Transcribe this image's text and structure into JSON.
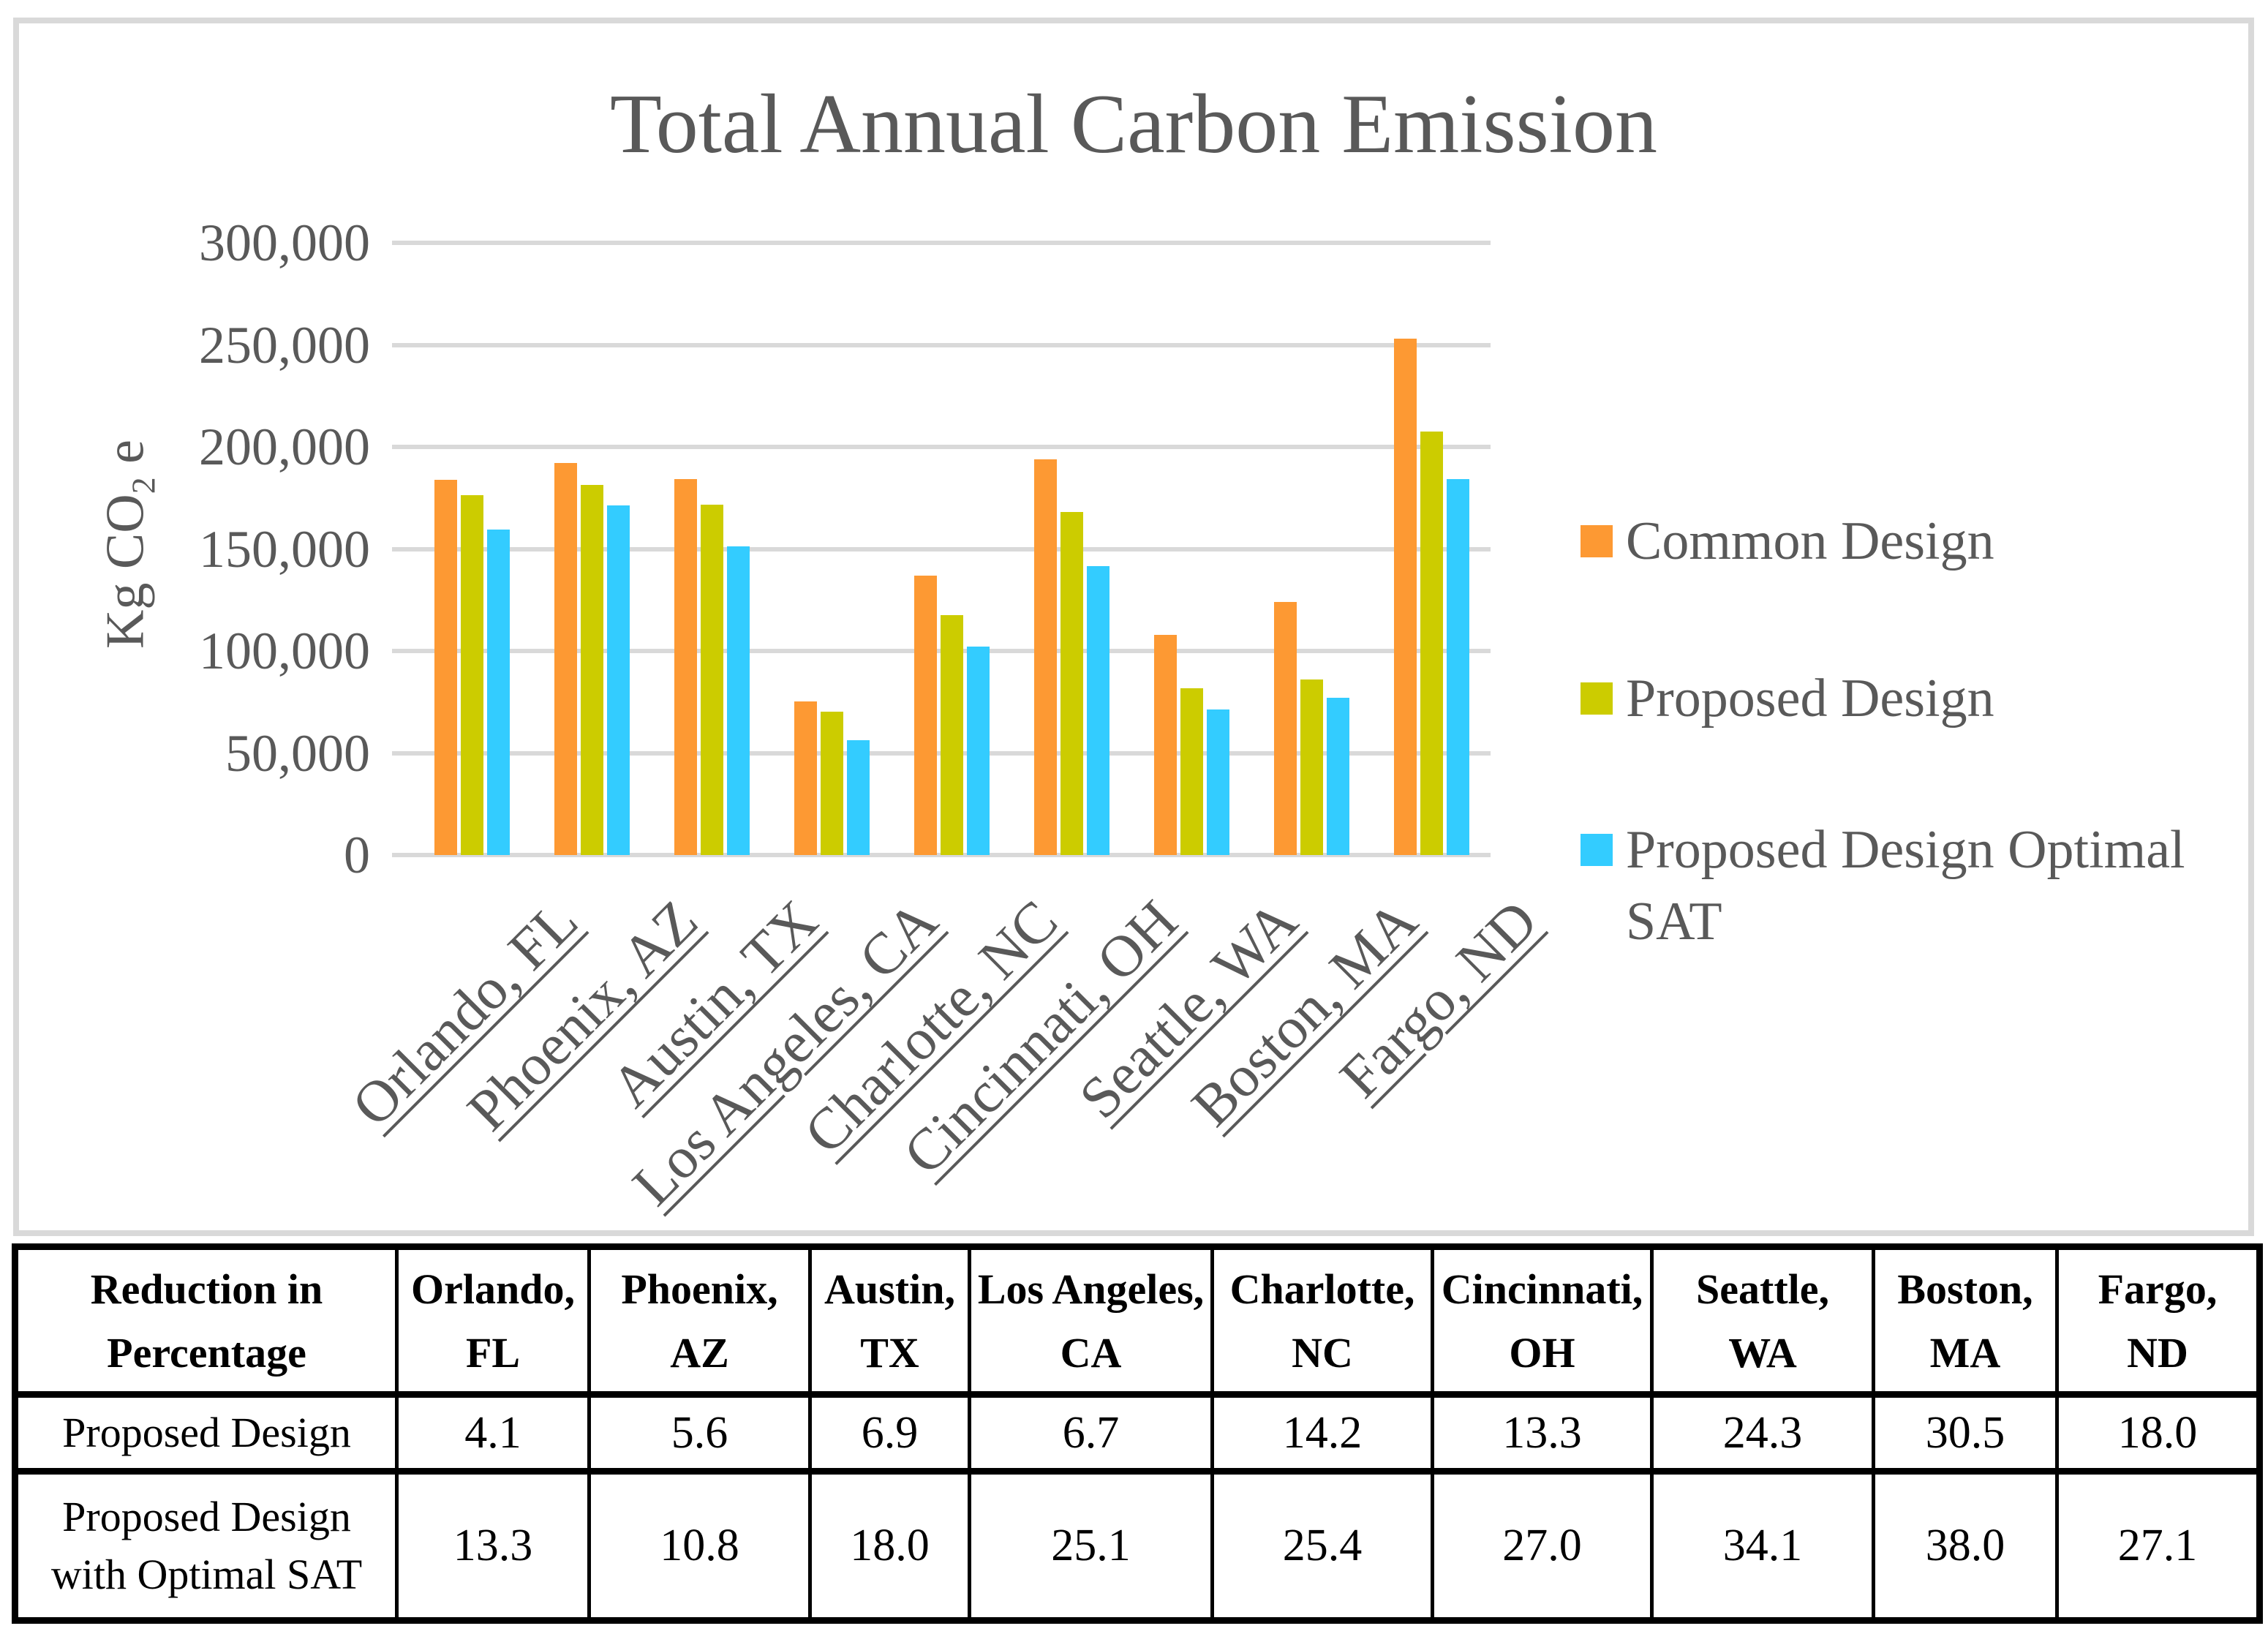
{
  "page": {
    "background": "#FFFFFF"
  },
  "chart": {
    "title": "Total Annual Carbon Emission",
    "frame_color": "#D9D9D9",
    "grid_color": "#D9D9D9",
    "text_color": "#595959",
    "y_axis_title": {
      "prefix": "Kg CO",
      "sub": "2",
      "suffix": " e"
    },
    "legend": [
      {
        "label": "Common Design",
        "color": "#FD9933"
      },
      {
        "label": "Proposed Design",
        "color": "#CCCC00"
      },
      {
        "label": "Proposed Design Optimal SAT",
        "color": "#33CCFF"
      }
    ]
  },
  "chart_data": {
    "type": "bar",
    "title": "Total Annual Carbon Emission",
    "ylabel": "Kg CO2 e",
    "xlabel": "",
    "ylim": [
      0,
      300000
    ],
    "grid": "horizontal",
    "legend_position": "right",
    "yticks": [
      {
        "label": "300,000",
        "value": 300000
      },
      {
        "label": "250,000",
        "value": 250000
      },
      {
        "label": "200,000",
        "value": 200000
      },
      {
        "label": "150,000",
        "value": 150000
      },
      {
        "label": "100,000",
        "value": 100000
      },
      {
        "label": "50,000",
        "value": 50000
      },
      {
        "label": "0",
        "value": 0
      }
    ],
    "categories": [
      "Orlando, FL",
      "Phoenix, AZ",
      "Austin, TX",
      "Los Angeles, CA",
      "Charlotte, NC",
      "Cincinnati, OH",
      "Seattle, WA",
      "Boston, MA",
      "Fargo, ND"
    ],
    "series": [
      {
        "name": "Common Design",
        "color": "#FD9933",
        "values": [
          184000,
          192000,
          184300,
          75300,
          137000,
          194000,
          108000,
          124000,
          253000
        ]
      },
      {
        "name": "Proposed Design",
        "color": "#CCCC00",
        "values": [
          176500,
          181200,
          171600,
          70300,
          117500,
          168200,
          81800,
          86200,
          207500
        ]
      },
      {
        "name": "Proposed Design Optimal SAT",
        "color": "#33CCFF",
        "values": [
          159500,
          171300,
          151100,
          56400,
          102100,
          141600,
          71200,
          76900,
          184400
        ]
      }
    ]
  },
  "table": {
    "corner_header": "Reduction in\nPercentage",
    "column_headers": [
      "Orlando,\nFL",
      "Phoenix,\nAZ",
      "Austin,\nTX",
      "Los Angeles,\nCA",
      "Charlotte,\nNC",
      "Cincinnati,\nOH",
      "Seattle,\nWA",
      "Boston,\nMA",
      "Fargo,\nND"
    ],
    "rows": [
      {
        "label": "Proposed Design",
        "values": [
          "4.1",
          "5.6",
          "6.9",
          "6.7",
          "14.2",
          "13.3",
          "24.3",
          "30.5",
          "18.0"
        ]
      },
      {
        "label": "Proposed Design\nwith Optimal SAT",
        "values": [
          "13.3",
          "10.8",
          "18.0",
          "25.1",
          "25.4",
          "27.0",
          "34.1",
          "38.0",
          "27.1"
        ]
      }
    ]
  }
}
